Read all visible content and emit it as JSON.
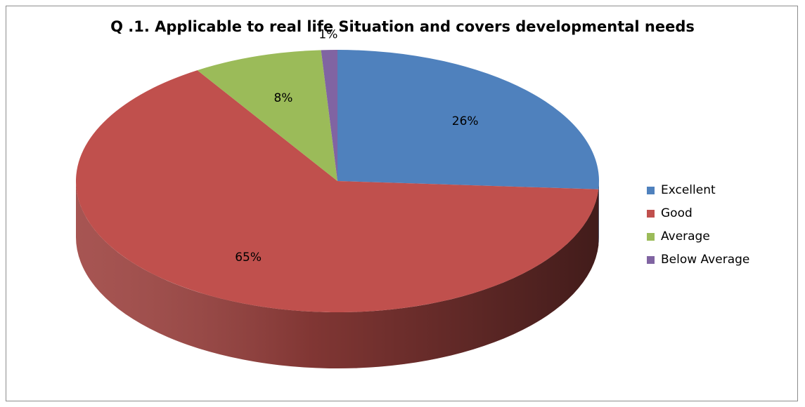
{
  "chart_data": {
    "type": "pie",
    "title": "Q .1. Applicable to real life Situation and covers developmental needs",
    "categories": [
      "Excellent",
      "Good",
      "Average",
      "Below Average"
    ],
    "values": [
      26,
      65,
      8,
      1
    ],
    "data_labels": [
      "26%",
      "65%",
      "8%",
      "1%"
    ],
    "colors": [
      "#4f81bd",
      "#c0504d",
      "#9bbb59",
      "#8064a2"
    ],
    "legend_position": "right",
    "style": "3d"
  }
}
